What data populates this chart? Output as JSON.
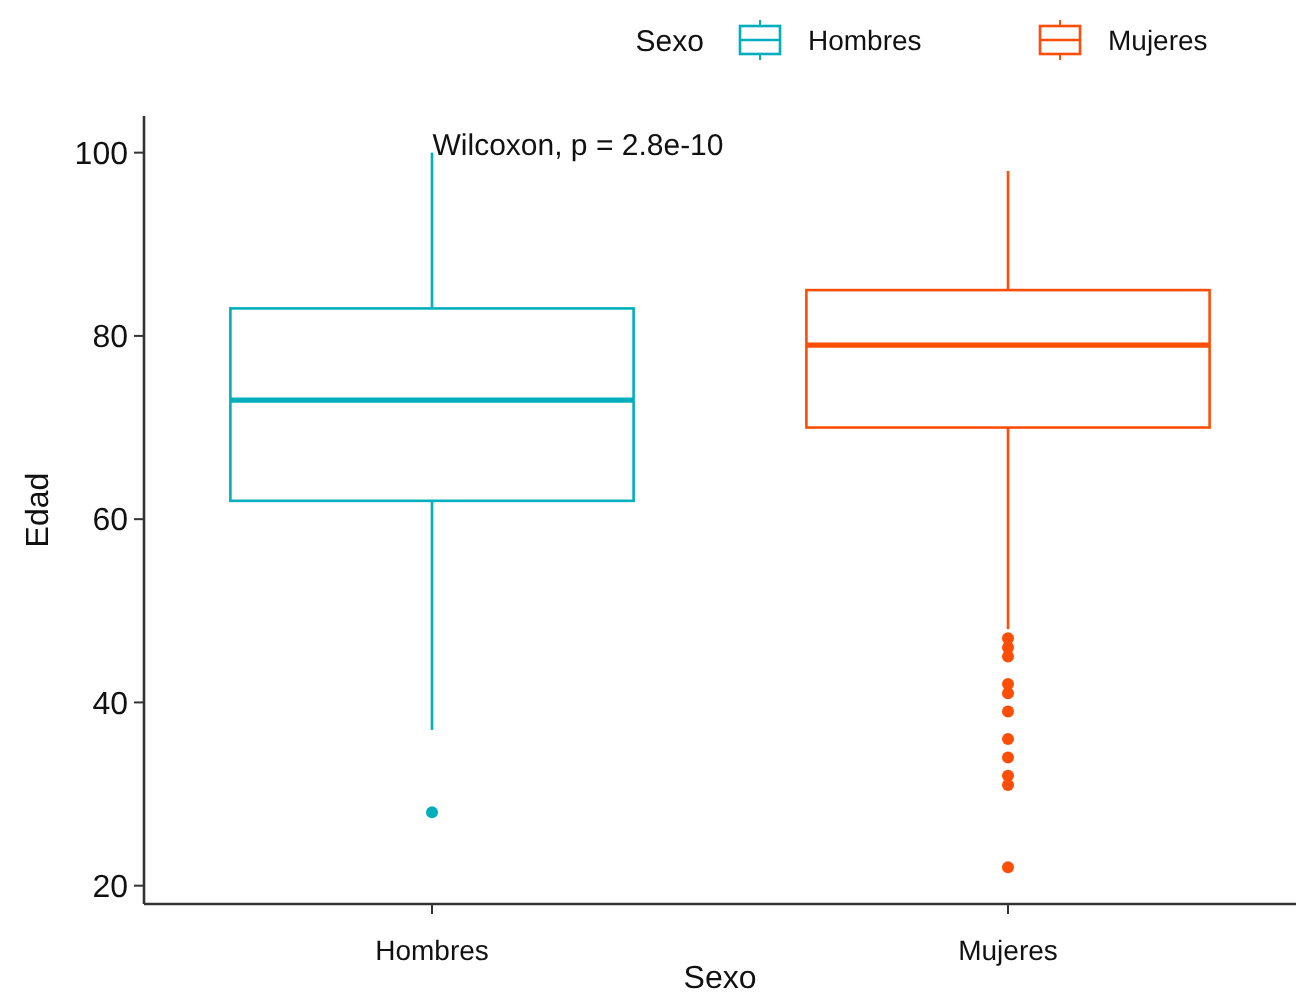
{
  "chart_data": {
    "type": "box",
    "xlabel": "Sexo",
    "ylabel": "Edad",
    "legend_title": "Sexo",
    "legend": "top",
    "grid": false,
    "categories": [
      "Hombres",
      "Mujeres"
    ],
    "ylim": [
      18,
      104
    ],
    "yticks": [
      20,
      40,
      60,
      80,
      100
    ],
    "annotations": [
      "Wilcoxon, p = 2.8e-10"
    ],
    "series": [
      {
        "name": "Hombres",
        "color": "#00afbb",
        "boxes": [
          {
            "low": 37,
            "q1": 62,
            "median": 73,
            "q3": 83,
            "high": 100,
            "outliers": [
              28
            ]
          },
          null
        ]
      },
      {
        "name": "Mujeres",
        "color": "#fc4e07",
        "boxes": [
          null,
          {
            "low": 48,
            "q1": 70,
            "median": 79,
            "q3": 85,
            "high": 98,
            "outliers": [
              47,
              46,
              45,
              42,
              41,
              39,
              36,
              34,
              32,
              31,
              22
            ]
          }
        ]
      }
    ]
  }
}
